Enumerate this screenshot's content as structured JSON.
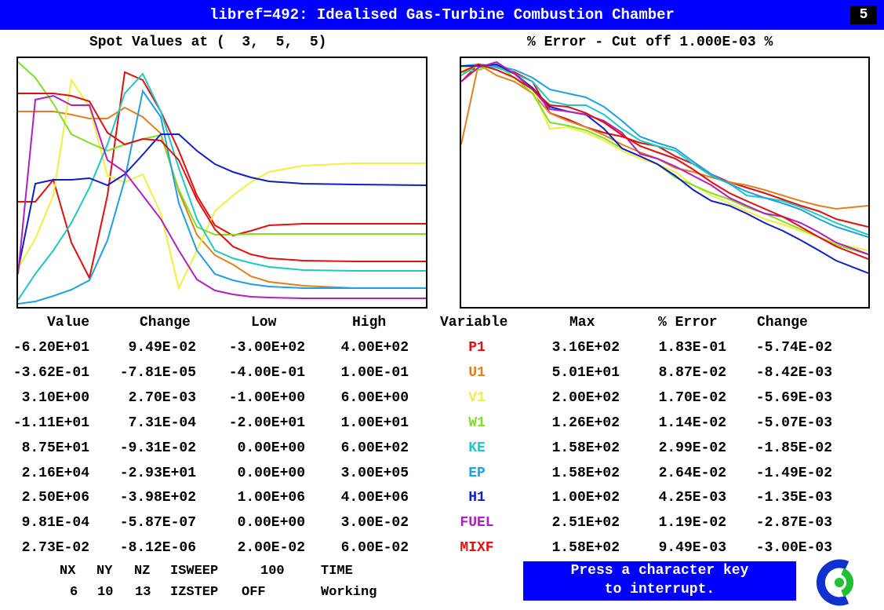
{
  "window": {
    "title": "libref=492: Idealised Gas-Turbine Combustion Chamber",
    "page_number": "5"
  },
  "left_plot": {
    "title": "Spot Values at (  3,  5,  5)"
  },
  "right_plot": {
    "title": "% Error - Cut off 1.000E-03 %"
  },
  "left_table": {
    "headers": {
      "value": "Value",
      "change": "Change",
      "low": "Low",
      "high": "High"
    },
    "rows": [
      {
        "value": "-6.20E+01",
        "change": "9.49E-02",
        "low": "-3.00E+02",
        "high": "4.00E+02"
      },
      {
        "value": "-3.62E-01",
        "change": "-7.81E-05",
        "low": "-4.00E-01",
        "high": "1.00E-01"
      },
      {
        "value": "3.10E+00",
        "change": "2.70E-03",
        "low": "-1.00E+00",
        "high": "6.00E+00"
      },
      {
        "value": "-1.11E+01",
        "change": "7.31E-04",
        "low": "-2.00E+01",
        "high": "1.00E+01"
      },
      {
        "value": "8.75E+01",
        "change": "-9.31E-02",
        "low": "0.00E+00",
        "high": "6.00E+02"
      },
      {
        "value": "2.16E+04",
        "change": "-2.93E+01",
        "low": "0.00E+00",
        "high": "3.00E+05"
      },
      {
        "value": "2.50E+06",
        "change": "-3.98E+02",
        "low": "1.00E+06",
        "high": "4.00E+06"
      },
      {
        "value": "9.81E-04",
        "change": "-5.87E-07",
        "low": "0.00E+00",
        "high": "3.00E-02"
      },
      {
        "value": "2.73E-02",
        "change": "-8.12E-06",
        "low": "2.00E-02",
        "high": "6.00E-02"
      }
    ]
  },
  "right_table": {
    "headers": {
      "variable": "Variable",
      "max": "Max",
      "error": "% Error",
      "change": "Change"
    },
    "rows": [
      {
        "variable": "P1",
        "color": "#e01010",
        "max": "3.16E+02",
        "error": "1.83E-01",
        "change": "-5.74E-02"
      },
      {
        "variable": "U1",
        "color": "#e08020",
        "max": "5.01E+01",
        "error": "8.87E-02",
        "change": "-8.42E-03"
      },
      {
        "variable": "V1",
        "color": "#f0f040",
        "max": "2.00E+02",
        "error": "1.70E-02",
        "change": "-5.69E-03"
      },
      {
        "variable": "W1",
        "color": "#80e020",
        "max": "1.26E+02",
        "error": "1.14E-02",
        "change": "-5.07E-03"
      },
      {
        "variable": "KE",
        "color": "#20c8c0",
        "max": "1.58E+02",
        "error": "2.99E-02",
        "change": "-1.85E-02"
      },
      {
        "variable": "EP",
        "color": "#20a0e0",
        "max": "1.58E+02",
        "error": "2.64E-02",
        "change": "-1.49E-02"
      },
      {
        "variable": "H1",
        "color": "#1020c0",
        "max": "1.00E+02",
        "error": "4.25E-03",
        "change": "-1.35E-03"
      },
      {
        "variable": "FUEL",
        "color": "#b020c0",
        "max": "2.51E+02",
        "error": "1.19E-02",
        "change": "-2.87E-03"
      },
      {
        "variable": "MIXF",
        "color": "#e01010",
        "max": "1.58E+02",
        "error": "9.49E-03",
        "change": "-3.00E-03"
      }
    ]
  },
  "status": {
    "nx_label": "NX",
    "ny_label": "NY",
    "nz_label": "NZ",
    "isweep_label": "ISWEEP",
    "isweep_value": "100",
    "time_label": "TIME",
    "nx_value": "6",
    "ny_value": "10",
    "nz_value": "13",
    "izstep_label": "IZSTEP",
    "izstep_value": "OFF",
    "time_value": "Working"
  },
  "interrupt": {
    "line1": "Press a character key",
    "line2": "to interrupt."
  },
  "logo_icon": "cham-logo-icon"
}
